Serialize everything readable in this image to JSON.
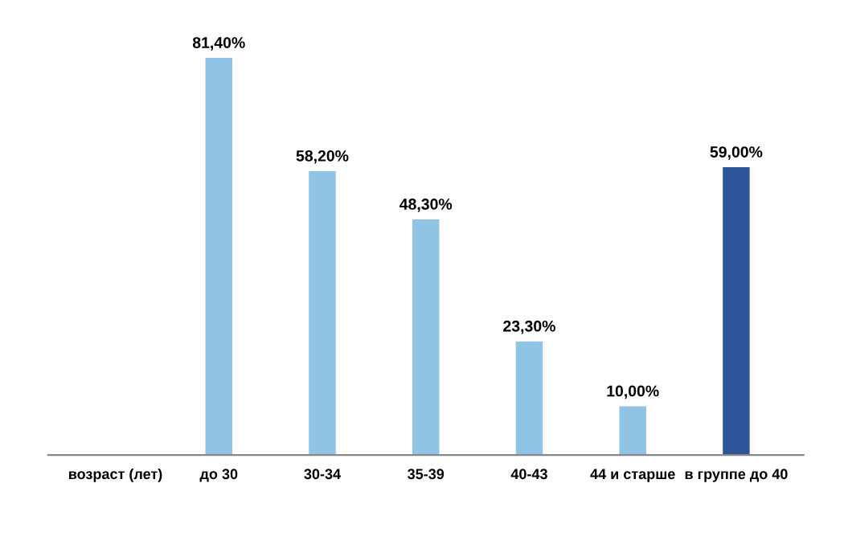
{
  "chart_data": {
    "type": "bar",
    "categories": [
      "возраст (лет)",
      "до 30",
      "30-34",
      "35-39",
      "40-43",
      "44 и старше",
      "в группе до 40"
    ],
    "values": [
      null,
      81.4,
      58.2,
      48.3,
      23.3,
      10.0,
      59.0
    ],
    "colors": [
      "#8fc4e5",
      "#8fc4e5",
      "#8fc4e5",
      "#8fc4e5",
      "#8fc4e5",
      "#8fc4e5",
      "#2f5497"
    ],
    "value_labels": [
      null,
      "81,40%",
      "58,20%",
      "48,30%",
      "23,30%",
      "10,00%",
      "59,00%"
    ],
    "grid": false,
    "legend": false
  }
}
